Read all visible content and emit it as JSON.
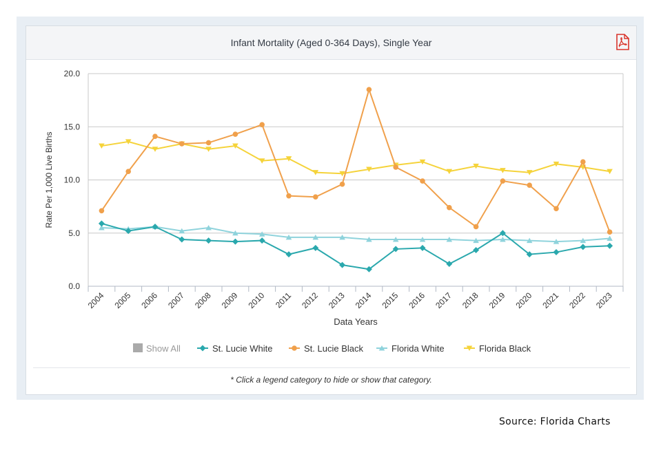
{
  "card": {
    "title": "Infant Mortality (Aged 0-364 Days), Single Year",
    "pdf_icon": "pdf-file-icon",
    "footnote": "* Click a legend category to hide or show that category."
  },
  "source_text": "Source: Florida Charts",
  "colors": {
    "st_lucie_white": "#2aa8ad",
    "st_lucie_black": "#f0a04b",
    "florida_white": "#8fd3dc",
    "florida_black": "#f5d33a",
    "show_all": "#aaaaaa",
    "pdf_red": "#d9342b"
  },
  "legend": {
    "show_all_label": "Show All"
  },
  "chart_data": {
    "type": "line",
    "title": "Infant Mortality (Aged 0-364 Days), Single Year",
    "xlabel": "Data Years",
    "ylabel": "Rate Per 1,000 Live Births",
    "ylim": [
      0,
      20
    ],
    "yticks": [
      "0.0",
      "5.0",
      "10.0",
      "15.0",
      "20.0"
    ],
    "grid": true,
    "legend_position": "bottom",
    "categories": [
      "2004",
      "2005",
      "2006",
      "2007",
      "2008",
      "2009",
      "2010",
      "2011",
      "2012",
      "2013",
      "2014",
      "2015",
      "2016",
      "2017",
      "2018",
      "2019",
      "2020",
      "2021",
      "2022",
      "2023"
    ],
    "series": [
      {
        "name": "St. Lucie White",
        "color": "#2aa8ad",
        "marker": "diamond",
        "values": [
          5.9,
          5.2,
          5.6,
          4.4,
          4.3,
          4.2,
          4.3,
          3.0,
          3.6,
          2.0,
          1.6,
          3.5,
          3.6,
          2.1,
          3.4,
          5.0,
          3.0,
          3.2,
          3.7,
          3.8
        ]
      },
      {
        "name": "St. Lucie Black",
        "color": "#f0a04b",
        "marker": "circle",
        "values": [
          7.1,
          10.8,
          14.1,
          13.4,
          13.5,
          14.3,
          15.2,
          8.5,
          8.4,
          9.6,
          18.5,
          11.2,
          9.9,
          7.4,
          5.6,
          9.9,
          9.5,
          7.3,
          11.7,
          5.1
        ]
      },
      {
        "name": "Florida White",
        "color": "#8fd3dc",
        "marker": "triangle",
        "values": [
          5.5,
          5.4,
          5.6,
          5.2,
          5.5,
          5.0,
          4.9,
          4.6,
          4.6,
          4.6,
          4.4,
          4.4,
          4.4,
          4.4,
          4.3,
          4.4,
          4.3,
          4.2,
          4.3,
          4.5
        ]
      },
      {
        "name": "Florida Black",
        "color": "#f5d33a",
        "marker": "triangle-down",
        "values": [
          13.2,
          13.6,
          12.9,
          13.4,
          12.9,
          13.2,
          11.8,
          12.0,
          10.7,
          10.6,
          11.0,
          11.4,
          11.7,
          10.8,
          11.3,
          10.9,
          10.7,
          11.5,
          11.2,
          10.8
        ]
      }
    ]
  }
}
